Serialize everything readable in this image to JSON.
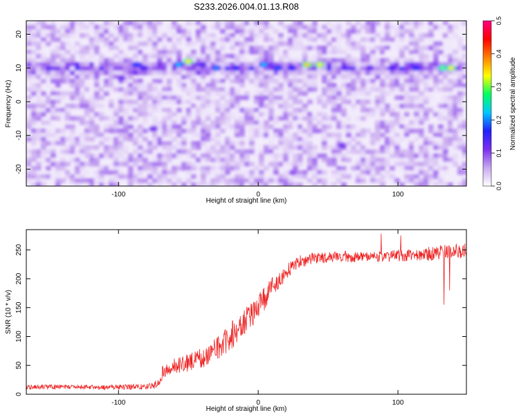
{
  "title": "S233.2026.004.01.13.R08",
  "chart_data": [
    {
      "type": "heatmap",
      "xlabel": "Height of straight line (km)",
      "ylabel": "Frequency (Hz)",
      "xlim": [
        -166,
        149
      ],
      "ylim": [
        -25,
        24
      ],
      "xticks": [
        -100,
        0,
        100
      ],
      "yticks": [
        -20,
        -10,
        0,
        10,
        20
      ],
      "signal_band_hz": 10,
      "colorbar": {
        "label": "Normalized spectral amplitude",
        "range": [
          0,
          0.5
        ],
        "ticks": [
          0.0,
          0.1,
          0.2,
          0.3,
          0.4,
          0.5
        ],
        "tick_labels": [
          "0.0",
          "0.1",
          "0.2",
          "0.3",
          "0.4",
          "0.5"
        ],
        "colors": [
          "#ffffff",
          "#c8a8f0",
          "#7b2ff0",
          "#2020ff",
          "#00c8ff",
          "#00ff60",
          "#ffff00",
          "#ff8000",
          "#ff0000",
          "#ff0080"
        ]
      },
      "hotspots": [
        {
          "x": -87,
          "y": 11,
          "v": 0.18
        },
        {
          "x": -82,
          "y": 10,
          "v": 0.15
        },
        {
          "x": -57,
          "y": 11,
          "v": 0.22
        },
        {
          "x": -50,
          "y": 12,
          "v": 0.34
        },
        {
          "x": -40,
          "y": 11,
          "v": 0.14
        },
        {
          "x": -30,
          "y": 10,
          "v": 0.2
        },
        {
          "x": -16,
          "y": 10,
          "v": 0.16
        },
        {
          "x": 4,
          "y": 11,
          "v": 0.22
        },
        {
          "x": 14,
          "y": 10,
          "v": 0.18
        },
        {
          "x": 24,
          "y": 10,
          "v": 0.16
        },
        {
          "x": 35,
          "y": 11,
          "v": 0.36
        },
        {
          "x": 44,
          "y": 11,
          "v": 0.34
        },
        {
          "x": 62,
          "y": 10,
          "v": 0.14
        },
        {
          "x": 80,
          "y": 10,
          "v": 0.13
        },
        {
          "x": 96,
          "y": 10,
          "v": 0.15
        },
        {
          "x": 113,
          "y": 10,
          "v": 0.17
        },
        {
          "x": 132,
          "y": 10,
          "v": 0.3
        },
        {
          "x": 138,
          "y": 10,
          "v": 0.34
        },
        {
          "x": -75,
          "y": -8,
          "v": 0.12
        },
        {
          "x": 60,
          "y": -13,
          "v": 0.12
        },
        {
          "x": -98,
          "y": 7,
          "v": 0.12
        },
        {
          "x": 25,
          "y": -21,
          "v": 0.1
        }
      ]
    },
    {
      "type": "line",
      "xlabel": "Height of straight line (km)",
      "ylabel": "SNR (10 * v/v)",
      "xlim": [
        -166,
        149
      ],
      "ylim": [
        0,
        285
      ],
      "xticks": [
        -100,
        0,
        100
      ],
      "yticks": [
        0,
        50,
        100,
        150,
        200,
        250
      ],
      "color": "#ee2222",
      "series": [
        {
          "name": "SNR",
          "x": [
            -166,
            -140,
            -110,
            -80,
            -72,
            -68,
            -60,
            -50,
            -40,
            -30,
            -20,
            -10,
            0,
            10,
            15,
            20,
            25,
            30,
            40,
            60,
            80,
            100,
            120,
            140,
            149
          ],
          "values": [
            12,
            13,
            12,
            13,
            18,
            40,
            48,
            55,
            62,
            78,
            100,
            125,
            150,
            185,
            195,
            212,
            222,
            230,
            235,
            238,
            238,
            240,
            243,
            248,
            248
          ],
          "noise": [
            4,
            4,
            4,
            5,
            8,
            12,
            14,
            16,
            18,
            20,
            24,
            24,
            22,
            18,
            16,
            12,
            12,
            11,
            10,
            10,
            10,
            11,
            12,
            13,
            13
          ]
        }
      ],
      "outliers": [
        {
          "x": 133,
          "y": 155
        },
        {
          "x": 137,
          "y": 180
        },
        {
          "x": 88,
          "y": 278
        },
        {
          "x": 102,
          "y": 275
        }
      ]
    }
  ]
}
